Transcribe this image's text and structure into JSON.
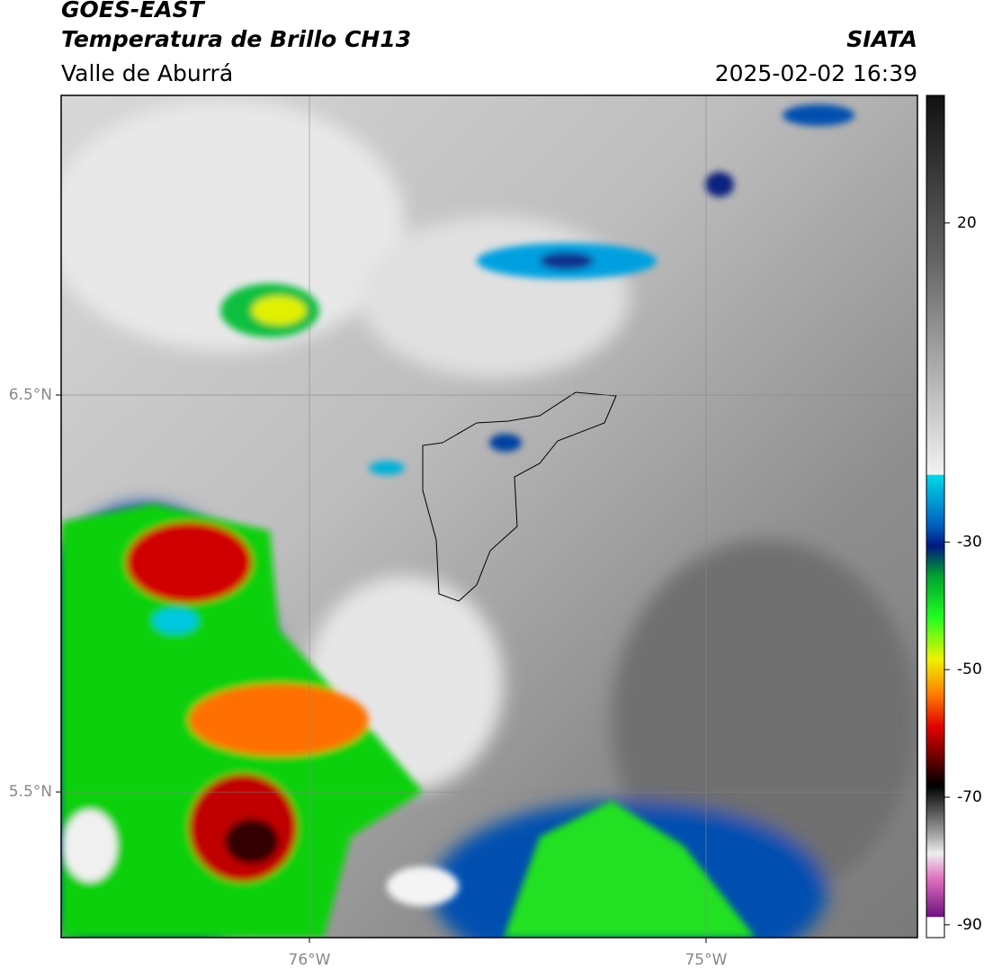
{
  "header": {
    "title": "GOES-EAST",
    "subtitle": "Temperatura de Brillo CH13",
    "region": "Valle de Aburrá",
    "source": "SIATA",
    "timestamp": "2025-02-02 16:39"
  },
  "map": {
    "xlim": [
      -76.626,
      -74.467
    ],
    "ylim": [
      5.133,
      7.255
    ],
    "xticks": [
      {
        "value": -76,
        "label": "76°W"
      },
      {
        "value": -75,
        "label": "75°W"
      }
    ],
    "yticks": [
      {
        "value": 6.5,
        "label": "6.5°N"
      },
      {
        "value": 5.5,
        "label": "5.5°N"
      }
    ],
    "grid": true
  },
  "colorbar": {
    "lim": [
      -92,
      40
    ],
    "ticks": [
      20,
      -30,
      -50,
      -70,
      -90
    ]
  }
}
